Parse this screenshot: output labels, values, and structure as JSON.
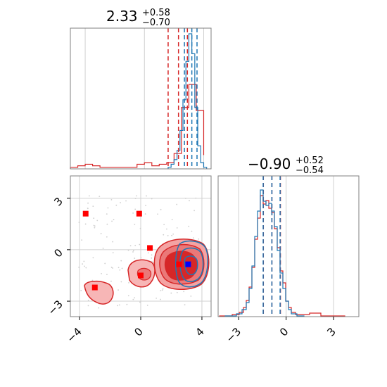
{
  "chart_data": [
    {
      "type": "histogram",
      "panel": "marginal-x",
      "title": {
        "value": "2.33",
        "upper": "+0.58",
        "lower": "−0.70"
      },
      "xlim": [
        -5,
        4.5
      ],
      "grid": true,
      "series": [
        {
          "color": "#d62728",
          "bins": [
            -5,
            -4.5,
            -4,
            -3.5,
            -3,
            -2.5,
            -2,
            -1.5,
            -1,
            -0.5,
            0,
            0.5,
            1,
            1.5,
            2,
            2.5,
            3,
            3.5,
            4
          ],
          "values": [
            1,
            2,
            3,
            2,
            1,
            1,
            1,
            1,
            1,
            3,
            4,
            2,
            3,
            4,
            10,
            40,
            55,
            38,
            9
          ]
        },
        {
          "color": "#1f77b4",
          "bins": [
            1.6,
            1.8,
            2.0,
            2.2,
            2.4,
            2.6,
            2.8,
            3.0,
            3.2,
            3.4,
            3.6,
            3.8,
            4.0,
            4.2
          ],
          "values": [
            1,
            3,
            6,
            12,
            25,
            45,
            70,
            88,
            75,
            40,
            15,
            4,
            1
          ]
        }
      ],
      "quantile_lines": [
        {
          "color": "#d62728",
          "x": [
            1.6,
            2.3,
            2.9
          ]
        },
        {
          "color": "#1f77b4",
          "x": [
            2.7,
            3.2,
            3.55
          ]
        }
      ]
    },
    {
      "type": "contour",
      "panel": "joint",
      "xlim": [
        -4.6,
        4.6
      ],
      "ylim": [
        -3.9,
        4.3
      ],
      "xticks": [
        "−4",
        "0",
        "4"
      ],
      "yticks": [
        "3",
        "0",
        "−3"
      ],
      "grid": true,
      "red_markers": [
        [
          -3.6,
          2.1
        ],
        [
          -0.1,
          2.1
        ],
        [
          0.6,
          0.1
        ],
        [
          0.0,
          -1.5
        ],
        [
          -3.0,
          -2.2
        ],
        [
          2.5,
          -0.85
        ]
      ],
      "blue_markers": [
        [
          3.1,
          -0.85
        ]
      ]
    },
    {
      "type": "histogram",
      "panel": "marginal-y",
      "title": {
        "value": "−0.90",
        "upper": "+0.52",
        "lower": "−0.54"
      },
      "xlim": [
        -4.3,
        4.6
      ],
      "xticks": [
        "−3",
        "0",
        "3"
      ],
      "grid": true,
      "quantile_lines": [
        {
          "color": "#d62728",
          "x": [
            -1.44,
            -0.9,
            -0.36
          ]
        },
        {
          "color": "#1f77b4",
          "x": [
            -1.45,
            -0.9,
            -0.38
          ]
        }
      ]
    }
  ],
  "colors": {
    "red": "#d62728",
    "blue": "#1f77b4",
    "marker_red": "#ff0000",
    "marker_blue": "#0000ff",
    "grid": "#d0d0d0",
    "axes": "#808080"
  }
}
